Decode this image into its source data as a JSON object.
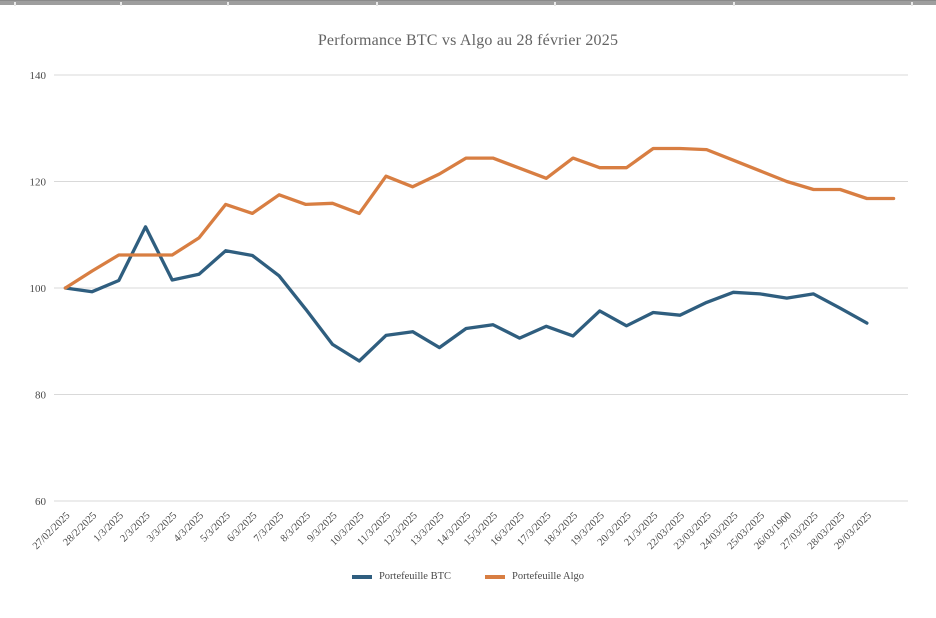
{
  "chart": {
    "title_color": "#636363",
    "axis_label_color": "#4a4a4a",
    "gridline_color": "#d9d9d9",
    "background": "#ffffff",
    "ruler_color": "#9e9e9e"
  },
  "chart_data": {
    "type": "line",
    "title": "Performance BTC vs Algo au 28 février 2025",
    "xlabel": "",
    "ylabel": "",
    "ylim": [
      60,
      140
    ],
    "y_ticks": [
      140,
      120,
      100,
      80,
      60
    ],
    "grid": true,
    "legend_position": "bottom",
    "x_tick_rotation": 45,
    "categories": [
      "27/02/2025",
      "28/2/2025",
      "1/3/2025",
      "2/3/2025",
      "3/3/2025",
      "4/3/2025",
      "5/3/2025",
      "6/3/2025",
      "7/3/2025",
      "8/3/2025",
      "9/3/2025",
      "10/3/2025",
      "11/3/2025",
      "12/3/2025",
      "13/3/2025",
      "14/3/2025",
      "15/3/2025",
      "16/3/2025",
      "17/3/2025",
      "18/3/2025",
      "19/3/2025",
      "20/3/2025",
      "21/3/2025",
      "22/03/2025",
      "23/03/2025",
      "24/03/2025",
      "25/03/2025",
      "26/03/1900",
      "27/03/2025",
      "28/03/2025",
      "29/03/2025",
      ""
    ],
    "series": [
      {
        "name": "Portefeuille BTC",
        "color": "#2f5e7f",
        "values": [
          100,
          99.3,
          101.4,
          111.5,
          101.5,
          102.6,
          107.0,
          106.1,
          102.3,
          96.0,
          89.4,
          86.3,
          91.1,
          91.8,
          88.8,
          92.4,
          93.1,
          90.6,
          92.8,
          91.0,
          95.7,
          92.9,
          95.4,
          94.9,
          97.3,
          99.2,
          98.9,
          98.1,
          98.9,
          96.2,
          93.4,
          null
        ]
      },
      {
        "name": "Portefeuille Algo",
        "color": "#d87e42",
        "values": [
          100,
          103.2,
          106.2,
          106.2,
          106.2,
          109.4,
          115.7,
          114.0,
          117.5,
          115.7,
          115.9,
          114.0,
          121.0,
          119.0,
          121.4,
          124.4,
          124.4,
          122.5,
          120.6,
          124.4,
          122.6,
          122.6,
          126.2,
          126.2,
          126.0,
          124.0,
          122.0,
          120.0,
          118.5,
          118.5,
          116.8,
          116.8
        ]
      }
    ]
  }
}
